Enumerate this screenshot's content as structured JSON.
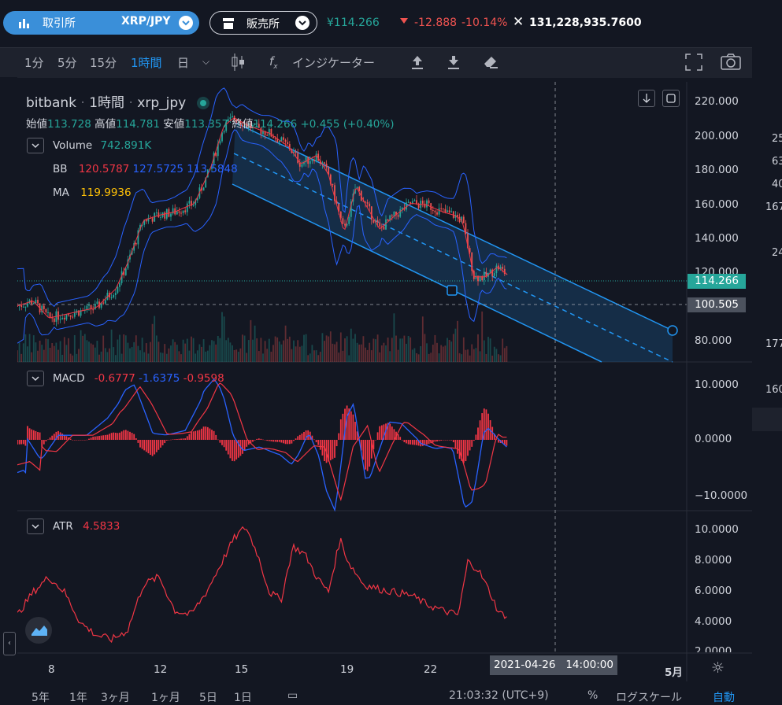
{
  "topbar": {
    "exchange_label": "取引所",
    "pair": "XRP/JPY",
    "market_label": "販売所",
    "price": "¥114.266",
    "change": "-12.888",
    "change_pct": "-10.14%",
    "volume": "131,228,935.7600"
  },
  "toolbar": {
    "intervals": [
      "1分",
      "5分",
      "15分",
      "1時間",
      "日"
    ],
    "active_interval": "1時間",
    "indicators_label": "インジケーター"
  },
  "chart": {
    "title": "bitbank",
    "interval": "1時間",
    "symbol": "xrp_jpy",
    "ohlc": {
      "open_label": "始値",
      "open": "113.728",
      "high_label": "高値",
      "high": "114.781",
      "low_label": "安値",
      "low": "113.357",
      "close_label": "終値",
      "close": "114.266",
      "change": "+0.455 (+0.40%)"
    },
    "volume": {
      "label": "Volume",
      "value": "742.891K"
    },
    "bb": {
      "label": "BB",
      "v1": "120.5787",
      "v2": "127.5725",
      "v3": "113.5848"
    },
    "ma": {
      "label": "MA",
      "value": "119.9936"
    },
    "price_axis": [
      "220.000",
      "200.000",
      "180.000",
      "160.000",
      "140.000",
      "120.000",
      "80.000"
    ],
    "current_price_tag": "114.266",
    "crosshair_price_tag": "100.505"
  },
  "macd": {
    "label": "MACD",
    "v1": "-0.6777",
    "v2": "-1.6375",
    "v3": "-0.9598",
    "axis": [
      "10.0000",
      "0.0000",
      "−10.0000"
    ]
  },
  "atr": {
    "label": "ATR",
    "value": "4.5833",
    "axis": [
      "10.0000",
      "8.0000",
      "6.0000",
      "4.0000",
      "2.0000"
    ]
  },
  "time_axis": {
    "labels": [
      "8",
      "12",
      "15",
      "19",
      "22",
      "5月"
    ],
    "crosshair_date": "2021-04-26",
    "crosshair_time": "14:00:00"
  },
  "right_panel": [
    "25",
    "63",
    "40",
    "167",
    "24",
    "177",
    "160"
  ],
  "bottom": {
    "ranges": [
      "5年",
      "1年",
      "3ヶ月",
      "1ヶ月",
      "5日",
      "1日"
    ],
    "clock": "21:03:32 (UTC+9)",
    "pct": "%",
    "log": "ログスケール",
    "auto": "自動"
  },
  "colors": {
    "accent_blue": "#3a8fd9",
    "up_green": "#26a69a",
    "down_red": "#ef5350",
    "bb_red": "#f23645",
    "bb_blue": "#2962ff",
    "ma_yellow": "#ffc107",
    "channel": "#2196f3"
  }
}
